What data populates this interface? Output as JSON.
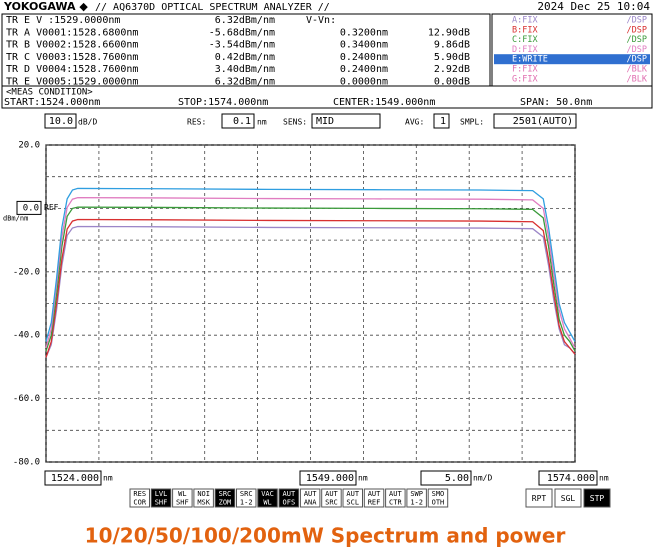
{
  "header": {
    "brand": "YOKOGAWA ◆",
    "title": "// AQ6370D OPTICAL SPECTRUM ANALYZER //",
    "datetime": "2024 Dec 25 10:04"
  },
  "markers": {
    "rows": [
      [
        "TR E V    :1529.0000nm",
        "6.32dBm/nm",
        "V-Vn:"
      ],
      [
        "TR A V0001:1528.6800nm",
        "-5.68dBm/nm",
        "0.3200nm",
        "12.90dB"
      ],
      [
        "TR B V0002:1528.6600nm",
        "-3.54dBm/nm",
        "0.3400nm",
        "9.86dB"
      ],
      [
        "TR C V0003:1528.7600nm",
        "0.42dBm/nm",
        "0.2400nm",
        "5.90dB"
      ],
      [
        "TR D V0004:1528.7600nm",
        "3.40dBm/nm",
        "0.2400nm",
        "2.92dB"
      ],
      [
        "TR E V0005:1529.0000nm",
        "6.32dBm/nm",
        "0.0000nm",
        "0.00dB"
      ]
    ]
  },
  "inactive_traces": [
    {
      "name": "F:FIX",
      "mode": "/BLK"
    },
    {
      "name": "G:FIX",
      "mode": "/BLK"
    }
  ],
  "meas_condition": {
    "title": "<MEAS CONDITION>",
    "start": "START:1524.000nm",
    "stop": "STOP:1574.000nm",
    "center": "CENTER:1549.000nm",
    "span": "SPAN:  50.0nm"
  },
  "settings": {
    "scale": "10.0",
    "scale_unit": "dB/D",
    "res_label": "RES:",
    "res": "0.1",
    "res_unit": "nm",
    "sens_label": "SENS:",
    "sens": "MID",
    "avg_label": "AVG:",
    "avg": "1",
    "smpl_label": "SMPL:",
    "smpl": "2501(AUTO)"
  },
  "chart_data": {
    "type": "line",
    "ref_label": "REF",
    "y_unit": "dBm/nm",
    "x_unit": "nm",
    "x_div": "5.00",
    "x_div_unit": "nm/D",
    "x": [
      1524,
      1524.5,
      1525,
      1525.5,
      1526,
      1526.5,
      1527,
      1535,
      1545,
      1555,
      1565,
      1570,
      1571,
      1571.5,
      1572,
      1572.5,
      1573,
      1573.5,
      1574
    ],
    "series": [
      {
        "name": "A:FIX",
        "mode": "/DSP",
        "color": "#9b86c8",
        "values": [
          -47,
          -43,
          -32,
          -18,
          -8.5,
          -6.2,
          -5.7,
          -5.8,
          -6,
          -6.1,
          -6.2,
          -6.4,
          -9,
          -18,
          -29,
          -38,
          -43,
          -44,
          -46
        ]
      },
      {
        "name": "B:FIX",
        "mode": "/DSP",
        "color": "#d83030",
        "values": [
          -47,
          -42,
          -30,
          -16,
          -6.5,
          -4,
          -3.5,
          -3.6,
          -3.8,
          -3.9,
          -4,
          -4.2,
          -7,
          -16,
          -27,
          -37,
          -42,
          -44,
          -46
        ]
      },
      {
        "name": "C:FIX",
        "mode": "/DSP",
        "color": "#3a9a3a",
        "values": [
          -45,
          -40,
          -27,
          -12,
          -2.5,
          0,
          0.4,
          0.3,
          0.1,
          0,
          -0.1,
          -0.3,
          -3,
          -12,
          -24,
          -35,
          -40,
          -42,
          -45
        ]
      },
      {
        "name": "D:FIX",
        "mode": "/DSP",
        "color": "#e07cc0",
        "values": [
          -44,
          -38,
          -24,
          -9,
          0.3,
          2.9,
          3.4,
          3.3,
          3.1,
          3,
          2.9,
          2.7,
          0,
          -9,
          -21,
          -32,
          -38,
          -41,
          -44
        ]
      },
      {
        "name": "E:WRITE",
        "mode": "/DSP",
        "color": "#2f9ee0",
        "active": true,
        "values": [
          -42,
          -36,
          -22,
          -6,
          3,
          5.8,
          6.3,
          6.2,
          6,
          5.9,
          5.8,
          5.6,
          3,
          -6,
          -18,
          -30,
          -36,
          -39,
          -42
        ]
      }
    ],
    "xlim": [
      1524,
      1574
    ],
    "xticks": [
      {
        "value": 1524,
        "label": "1524.000"
      },
      {
        "value": 1549,
        "label": "1549.000"
      },
      {
        "value": 1574,
        "label": "1574.000"
      }
    ],
    "minor_xticks": [
      1529,
      1534,
      1539,
      1544,
      1554,
      1559,
      1564,
      1569
    ],
    "ylim": [
      -80,
      20
    ],
    "yticks": [
      {
        "value": 20,
        "label": "20.0"
      },
      {
        "value": 0,
        "label": "0.0",
        "boxed": true
      },
      {
        "value": -20,
        "label": "-20.0"
      },
      {
        "value": -40,
        "label": "-40.0"
      },
      {
        "value": -60,
        "label": "-60.0"
      },
      {
        "value": -80,
        "label": "-80.0"
      }
    ],
    "minor_yticks": [
      10,
      -10,
      -30,
      -50,
      -70
    ],
    "grid": true
  },
  "buttons": [
    {
      "top": "RES",
      "bottom": "COR",
      "active": false
    },
    {
      "top": "LVL",
      "bottom": "SHF",
      "active": true
    },
    {
      "top": "WL",
      "bottom": "SHF",
      "active": false
    },
    {
      "top": "NOI",
      "bottom": "MSK",
      "active": false
    },
    {
      "top": "SRC",
      "bottom": "ZOM",
      "active": true
    },
    {
      "top": "SRC",
      "bottom": "1-2",
      "active": false
    },
    {
      "top": "VAC",
      "bottom": "WL",
      "active": true
    },
    {
      "top": "AUT",
      "bottom": "OFS",
      "active": true
    },
    {
      "top": "AUT",
      "bottom": "ANA",
      "active": false
    },
    {
      "top": "AUT",
      "bottom": "SRC",
      "active": false
    },
    {
      "top": "AUT",
      "bottom": "SCL",
      "active": false
    },
    {
      "top": "AUT",
      "bottom": "REF",
      "active": false
    },
    {
      "top": "AUT",
      "bottom": "CTR",
      "active": false
    },
    {
      "top": "SWP",
      "bottom": "1-2",
      "active": false
    },
    {
      "top": "SMO",
      "bottom": "OTH",
      "active": false
    }
  ],
  "controls": [
    {
      "label": "RPT",
      "active": false
    },
    {
      "label": "SGL",
      "active": false
    },
    {
      "label": "STP",
      "active": true
    }
  ],
  "caption": "10/20/50/100/200mW Spectrum and power"
}
